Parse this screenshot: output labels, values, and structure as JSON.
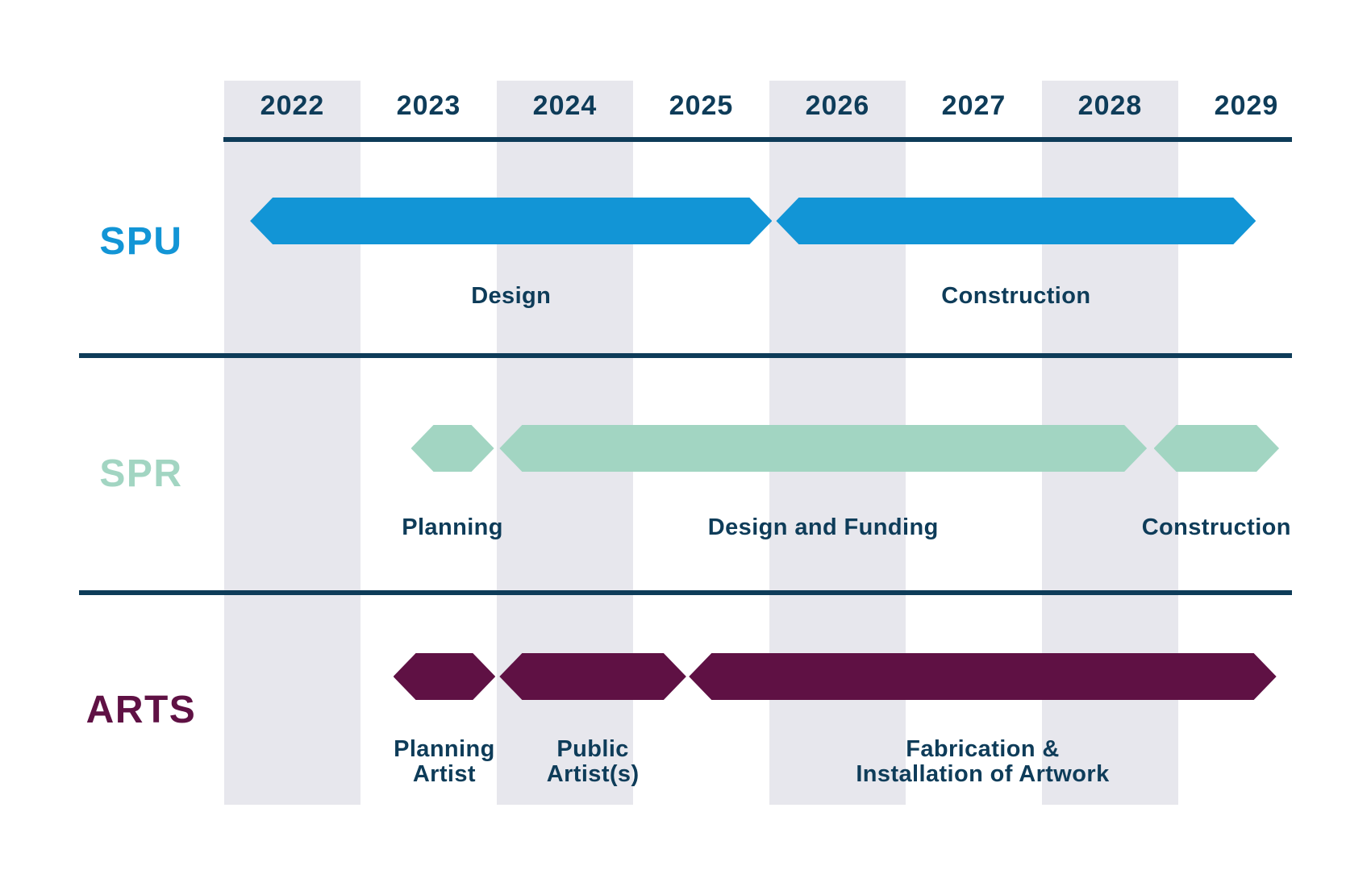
{
  "page": {
    "background": "#FFFFFF"
  },
  "colors": {
    "band": "#E7E7ED",
    "rule": "#0E3C59",
    "text": "#0E3C59",
    "spu_blue": "#1295D6",
    "spr_teal": "#A2D5C2",
    "arts_maroon": "#5F1144"
  },
  "chart_data": {
    "type": "gantt",
    "title": "",
    "x_axis": {
      "year_start": 2022,
      "years": [
        "2022",
        "2023",
        "2024",
        "2025",
        "2026",
        "2027",
        "2028",
        "2029"
      ],
      "shaded_years": [
        "2022",
        "2024",
        "2026",
        "2028"
      ],
      "grid": "alternating-vertical-bands"
    },
    "legend_position": "left-row-labels",
    "rows": [
      {
        "id": "spu",
        "label": "SPU",
        "color": "#1295D6",
        "phases": [
          {
            "name": "Design",
            "label_lines": [
              "Design"
            ],
            "start": 2022.19,
            "end": 2026.02
          },
          {
            "name": "Construction",
            "label_lines": [
              "Construction"
            ],
            "start": 2026.05,
            "end": 2029.57
          }
        ]
      },
      {
        "id": "spr",
        "label": "SPR",
        "color": "#A2D5C2",
        "phases": [
          {
            "name": "Planning",
            "label_lines": [
              "Planning"
            ],
            "start": 2023.37,
            "end": 2023.98
          },
          {
            "name": "Design and Funding",
            "label_lines": [
              "Design and Funding"
            ],
            "start": 2024.02,
            "end": 2028.77
          },
          {
            "name": "Construction",
            "label_lines": [
              "Construction"
            ],
            "start": 2028.82,
            "end": 2029.74
          }
        ]
      },
      {
        "id": "arts",
        "label": "ARTS",
        "color": "#5F1144",
        "phases": [
          {
            "name": "Planning Artist",
            "label_lines": [
              "Planning",
              "Artist"
            ],
            "start": 2023.24,
            "end": 2023.99
          },
          {
            "name": "Public Artist(s)",
            "label_lines": [
              "Public",
              "Artist(s)"
            ],
            "start": 2024.02,
            "end": 2025.39
          },
          {
            "name": "Fabrication & Installation of Artwork",
            "label_lines": [
              "Fabrication &",
              "Installation of Artwork"
            ],
            "start": 2025.41,
            "end": 2029.72
          }
        ]
      }
    ]
  }
}
